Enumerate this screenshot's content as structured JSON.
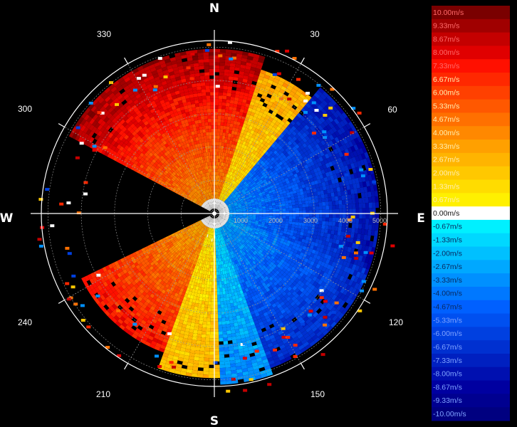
{
  "chart_data": {
    "type": "heatmap",
    "projection": "polar (PPI radial velocity)",
    "cardinals": [
      "N",
      "E",
      "S",
      "W"
    ],
    "bearing_labels": [
      "30",
      "60",
      "120",
      "150",
      "210",
      "240",
      "300",
      "330"
    ],
    "range_labels": [
      "1000",
      "2000",
      "3000",
      "4000",
      "5000"
    ],
    "range_max": 5200,
    "grid": true,
    "colorbar": {
      "placement": "right",
      "labels": [
        "10.00m/s",
        "9.33m/s",
        "8.67m/s",
        "8.00m/s",
        "7.33m/s",
        "6.67m/s",
        "6.00m/s",
        "5.33m/s",
        "4.67m/s",
        "4.00m/s",
        "3.33m/s",
        "2.67m/s",
        "2.00m/s",
        "1.33m/s",
        "0.67m/s",
        "0.00m/s",
        "-0.67m/s",
        "-1.33m/s",
        "-2.00m/s",
        "-2.67m/s",
        "-3.33m/s",
        "-4.00m/s",
        "-4.67m/s",
        "-5.33m/s",
        "-6.00m/s",
        "-6.67m/s",
        "-7.33m/s",
        "-8.00m/s",
        "-8.67m/s",
        "-9.33m/s",
        "-10.00m/s"
      ],
      "colors": [
        "#7a0000",
        "#a00000",
        "#c40000",
        "#e00000",
        "#ff1000",
        "#ff2800",
        "#ff4000",
        "#ff5800",
        "#ff7000",
        "#ff8800",
        "#ffa000",
        "#ffb400",
        "#ffc800",
        "#ffdc00",
        "#fff000",
        "#ffffff",
        "#00f0ff",
        "#00d8ff",
        "#00c0ff",
        "#00a8ff",
        "#0090ff",
        "#0078ff",
        "#0060ff",
        "#0050f0",
        "#0040e0",
        "#0030d0",
        "#0020c0",
        "#0010b0",
        "#0000a0",
        "#000090",
        "#000080"
      ]
    },
    "velocity_field": {
      "description": "approx. velocity sectors (deg from north, m/s at max range)",
      "sectors": [
        {
          "from_deg": 298,
          "to_deg": 18,
          "v_far": 9.3,
          "max_range": 4900
        },
        {
          "from_deg": 18,
          "to_deg": 40,
          "v_far": 3.0,
          "max_range": 4500
        },
        {
          "from_deg": 40,
          "to_deg": 110,
          "v_far": -8.0,
          "max_range": 4900
        },
        {
          "from_deg": 110,
          "to_deg": 160,
          "v_far": -7.0,
          "max_range": 4900
        },
        {
          "from_deg": 160,
          "to_deg": 178,
          "v_far": -3.5,
          "max_range": 5100
        },
        {
          "from_deg": 178,
          "to_deg": 200,
          "v_far": 2.5,
          "max_range": 4900
        },
        {
          "from_deg": 200,
          "to_deg": 245,
          "v_far": 7.5,
          "max_range": 4400
        }
      ]
    }
  }
}
